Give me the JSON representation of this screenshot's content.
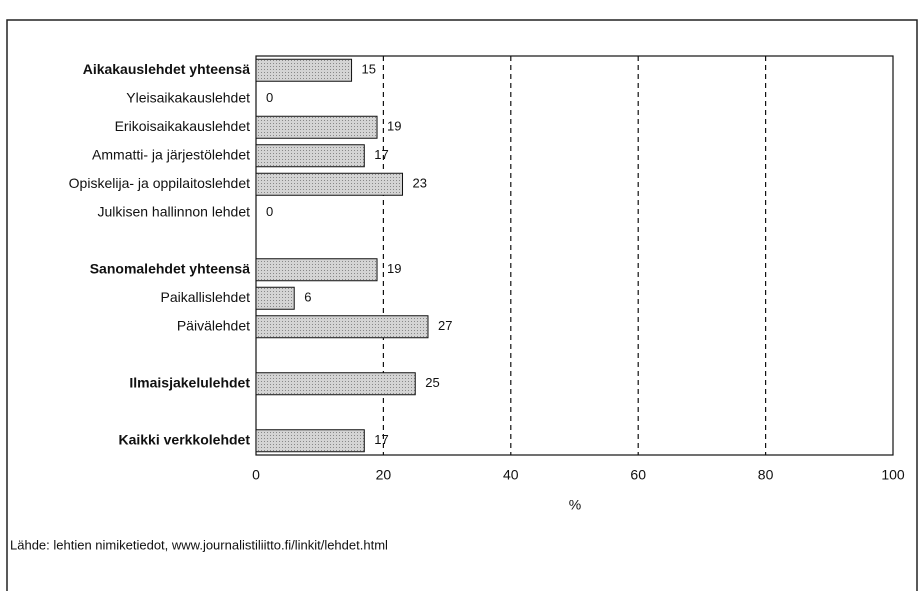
{
  "chart_data": {
    "type": "bar",
    "orientation": "horizontal",
    "categories": [
      "Aikakauslehdet yhteensä",
      "Yleisaikakauslehdet",
      "Erikoisaikakauslehdet",
      "Ammatti- ja järjestölehdet",
      "Opiskelija- ja oppilaitoslehdet",
      "Julkisen hallinnon lehdet",
      null,
      "Sanomalehdet yhteensä",
      "Paikallislehdet",
      "Päivälehdet",
      null,
      "Ilmaisjakelulehdet",
      null,
      "Kaikki verkkolehdet"
    ],
    "values": [
      15,
      0,
      19,
      17,
      23,
      0,
      null,
      19,
      6,
      27,
      null,
      25,
      null,
      17
    ],
    "color": "#c8c8c8",
    "xlim": [
      0,
      100
    ],
    "xticks": [
      0,
      20,
      40,
      60,
      80,
      100
    ],
    "xlabel": "%",
    "grid": true,
    "source": "Lähde: lehtien nimiketiedot, www.journalistiliitto.fi/linkit/lehdet.html"
  }
}
